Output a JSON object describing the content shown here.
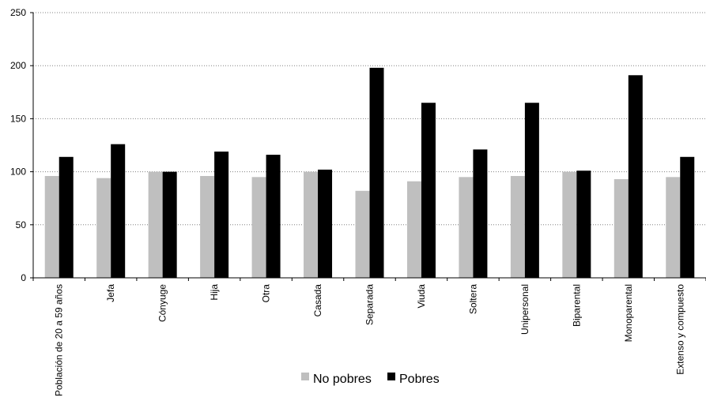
{
  "chart_data": {
    "type": "bar",
    "categories": [
      "Población de 20 a 59 años",
      "Jefa",
      "Cónyuge",
      "Hija",
      "Otra",
      "Casada",
      "Separada",
      "Viuda",
      "Soltera",
      "Unipersonal",
      "Biparental",
      "Monoparental",
      "Extenso y compuesto"
    ],
    "series": [
      {
        "name": "No pobres",
        "color": "#bfbfbf",
        "values": [
          96,
          94,
          100,
          96,
          95,
          100,
          82,
          91,
          95,
          96,
          100,
          93,
          95
        ]
      },
      {
        "name": "Pobres",
        "color": "#000000",
        "values": [
          114,
          126,
          100,
          119,
          116,
          102,
          198,
          165,
          121,
          165,
          101,
          191,
          114
        ]
      }
    ],
    "y_ticks": [
      "0",
      "50",
      "100",
      "150",
      "200",
      "250"
    ],
    "ylim": [
      0,
      250
    ],
    "grid": true,
    "legend_position": "bottom"
  }
}
